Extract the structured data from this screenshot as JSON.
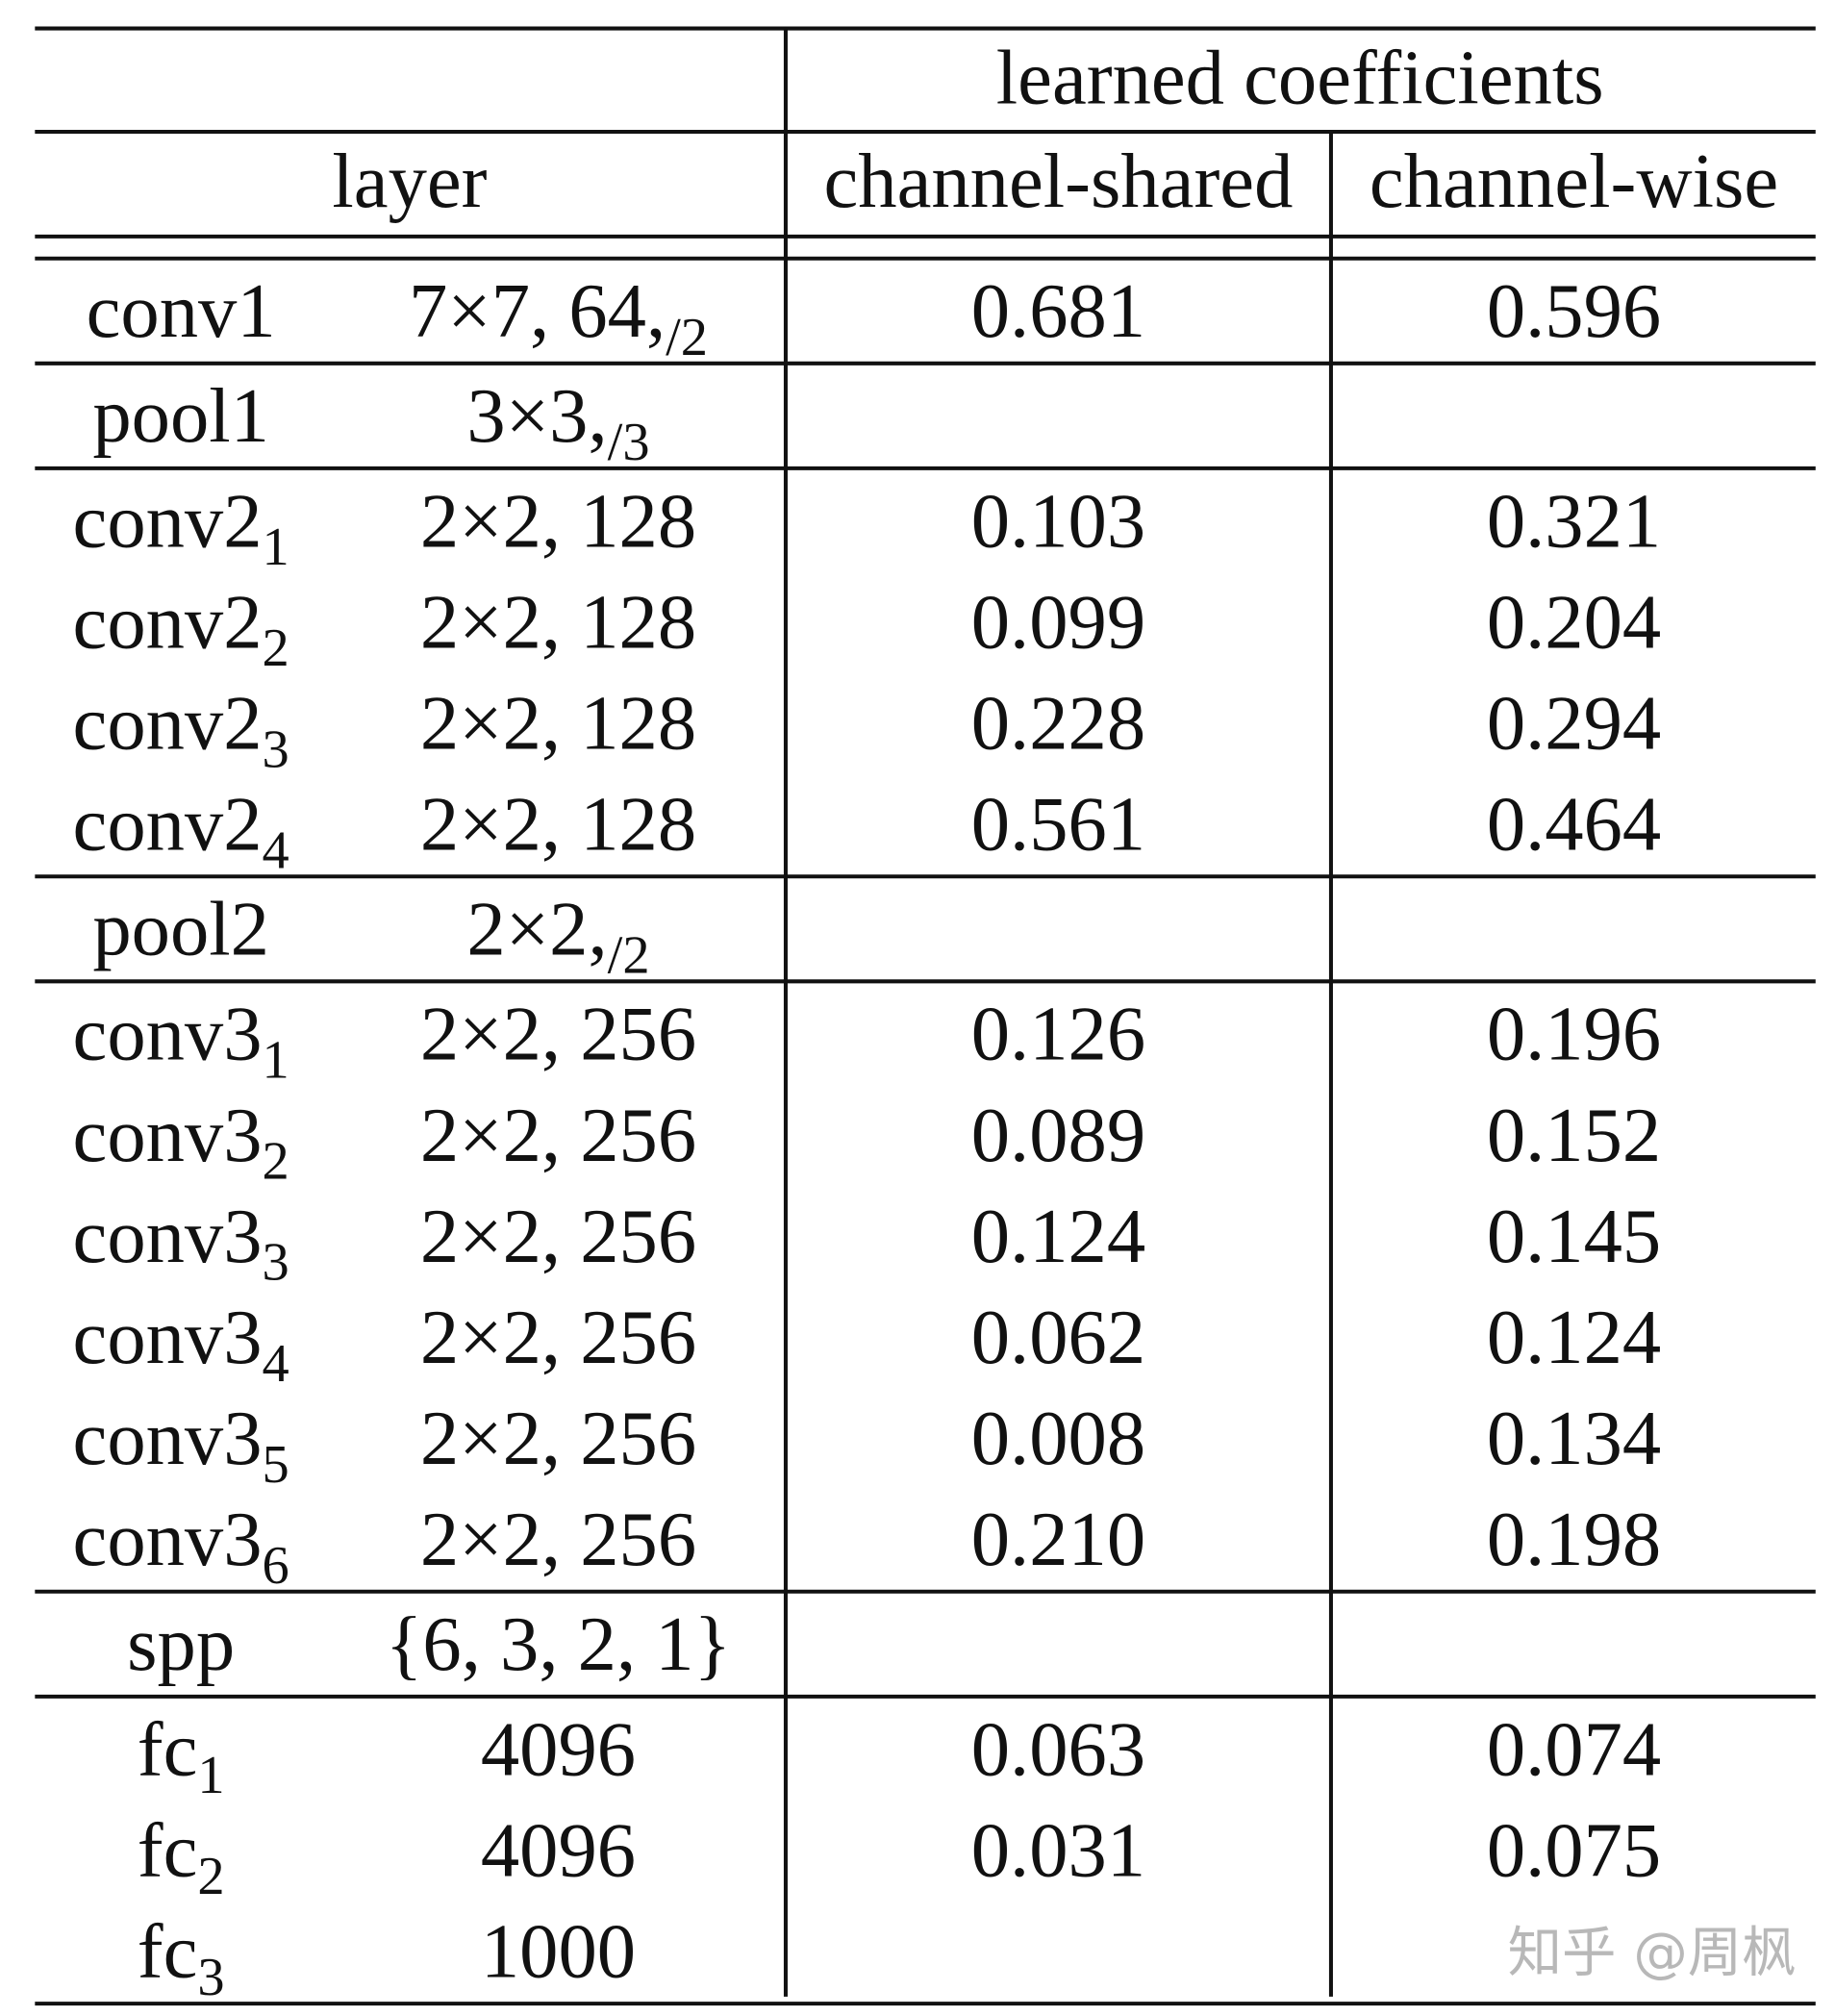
{
  "table": {
    "header": {
      "group": "learned coefficients",
      "layer": "layer",
      "shared": "channel-shared",
      "wise": "channel-wise"
    },
    "groups": [
      [
        {
          "name": "conv1",
          "config": "7×7, 64,",
          "config_sub": "/2",
          "shared": "0.681",
          "wise": "0.596"
        }
      ],
      [
        {
          "name": "pool1",
          "config": "3×3,",
          "config_sub": "/3"
        }
      ],
      [
        {
          "name": "conv2",
          "name_sub": "1",
          "config": "2×2, 128",
          "shared": "0.103",
          "wise": "0.321"
        },
        {
          "name": "conv2",
          "name_sub": "2",
          "config": "2×2, 128",
          "shared": "0.099",
          "wise": "0.204"
        },
        {
          "name": "conv2",
          "name_sub": "3",
          "config": "2×2, 128",
          "shared": "0.228",
          "wise": "0.294"
        },
        {
          "name": "conv2",
          "name_sub": "4",
          "config": "2×2, 128",
          "shared": "0.561",
          "wise": "0.464"
        }
      ],
      [
        {
          "name": "pool2",
          "config": "2×2,",
          "config_sub": "/2"
        }
      ],
      [
        {
          "name": "conv3",
          "name_sub": "1",
          "config": "2×2, 256",
          "shared": "0.126",
          "wise": "0.196"
        },
        {
          "name": "conv3",
          "name_sub": "2",
          "config": "2×2, 256",
          "shared": "0.089",
          "wise": "0.152"
        },
        {
          "name": "conv3",
          "name_sub": "3",
          "config": "2×2, 256",
          "shared": "0.124",
          "wise": "0.145"
        },
        {
          "name": "conv3",
          "name_sub": "4",
          "config": "2×2, 256",
          "shared": "0.062",
          "wise": "0.124"
        },
        {
          "name": "conv3",
          "name_sub": "5",
          "config": "2×2, 256",
          "shared": "0.008",
          "wise": "0.134"
        },
        {
          "name": "conv3",
          "name_sub": "6",
          "config": "2×2, 256",
          "shared": "0.210",
          "wise": "0.198"
        }
      ],
      [
        {
          "name": "spp",
          "config": "{6, 3, 2, 1}"
        }
      ],
      [
        {
          "name": "fc",
          "name_sub": "1",
          "config": "4096",
          "shared": "0.063",
          "wise": "0.074"
        },
        {
          "name": "fc",
          "name_sub": "2",
          "config": "4096",
          "shared": "0.031",
          "wise": "0.075"
        },
        {
          "name": "fc",
          "name_sub": "3",
          "config": "1000"
        }
      ]
    ]
  },
  "watermark": "知乎 @周枫"
}
